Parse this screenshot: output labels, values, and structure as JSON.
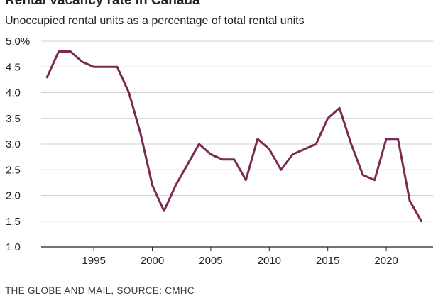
{
  "chart_data": {
    "type": "line",
    "title": "Rental vacancy rate in Canada",
    "subtitle": "Unoccupied rental units as a percentage of total rental units",
    "source": "THE GLOBE AND MAIL, SOURCE: CMHC",
    "xlabel": "",
    "ylabel": "",
    "xlim": [
      1990.5,
      2024
    ],
    "ylim": [
      1.0,
      5.0
    ],
    "grid": true,
    "y_ticks": [
      {
        "value": 1.0,
        "label": "1.0"
      },
      {
        "value": 1.5,
        "label": "1.5"
      },
      {
        "value": 2.0,
        "label": "2.0"
      },
      {
        "value": 2.5,
        "label": "2.5"
      },
      {
        "value": 3.0,
        "label": "3.0"
      },
      {
        "value": 3.5,
        "label": "3.5"
      },
      {
        "value": 4.0,
        "label": "4.0"
      },
      {
        "value": 4.5,
        "label": "4.5"
      },
      {
        "value": 5.0,
        "label": "5.0%"
      }
    ],
    "x_ticks": [
      {
        "value": 1995,
        "label": "1995"
      },
      {
        "value": 2000,
        "label": "2000"
      },
      {
        "value": 2005,
        "label": "2005"
      },
      {
        "value": 2010,
        "label": "2010"
      },
      {
        "value": 2015,
        "label": "2015"
      },
      {
        "value": 2020,
        "label": "2020"
      }
    ],
    "series": [
      {
        "name": "Rental vacancy rate",
        "color": "#7a2a52",
        "x": [
          1991,
          1992,
          1993,
          1994,
          1995,
          1996,
          1997,
          1998,
          1999,
          2000,
          2001,
          2002,
          2003,
          2004,
          2005,
          2006,
          2007,
          2008,
          2009,
          2010,
          2011,
          2012,
          2013,
          2014,
          2015,
          2016,
          2017,
          2018,
          2019,
          2020,
          2021,
          2022,
          2023
        ],
        "values": [
          4.3,
          4.8,
          4.8,
          4.6,
          4.5,
          4.5,
          4.5,
          4.0,
          3.2,
          2.2,
          1.7,
          2.2,
          2.6,
          3.0,
          2.8,
          2.7,
          2.7,
          2.3,
          3.1,
          2.9,
          2.5,
          2.8,
          2.9,
          3.0,
          3.5,
          3.7,
          3.0,
          2.4,
          2.3,
          3.1,
          3.1,
          1.9,
          1.5
        ]
      }
    ]
  }
}
